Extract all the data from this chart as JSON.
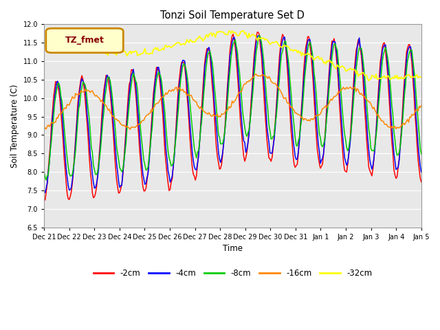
{
  "title": "Tonzi Soil Temperature Set D",
  "xlabel": "Time",
  "ylabel": "Soil Temperature (C)",
  "ylim": [
    6.5,
    12.0
  ],
  "yticks": [
    6.5,
    7.0,
    7.5,
    8.0,
    8.5,
    9.0,
    9.5,
    10.0,
    10.5,
    11.0,
    11.5,
    12.0
  ],
  "legend_label": "TZ_fmet",
  "series_labels": [
    "-2cm",
    "-4cm",
    "-8cm",
    "-16cm",
    "-32cm"
  ],
  "series_colors": [
    "#ff0000",
    "#0000ff",
    "#00cc00",
    "#ff8800",
    "#ffff00"
  ],
  "bg_color": "#e8e8e8",
  "days": [
    "Dec 21",
    "Dec 22",
    "Dec 23",
    "Dec 24",
    "Dec 25",
    "Dec 26",
    "Dec 27",
    "Dec 28",
    "Dec 29",
    "Dec 30",
    "Dec 31",
    "Jan 1",
    "Jan 2",
    "Jan 3",
    "Jan 4",
    "Jan 5"
  ]
}
